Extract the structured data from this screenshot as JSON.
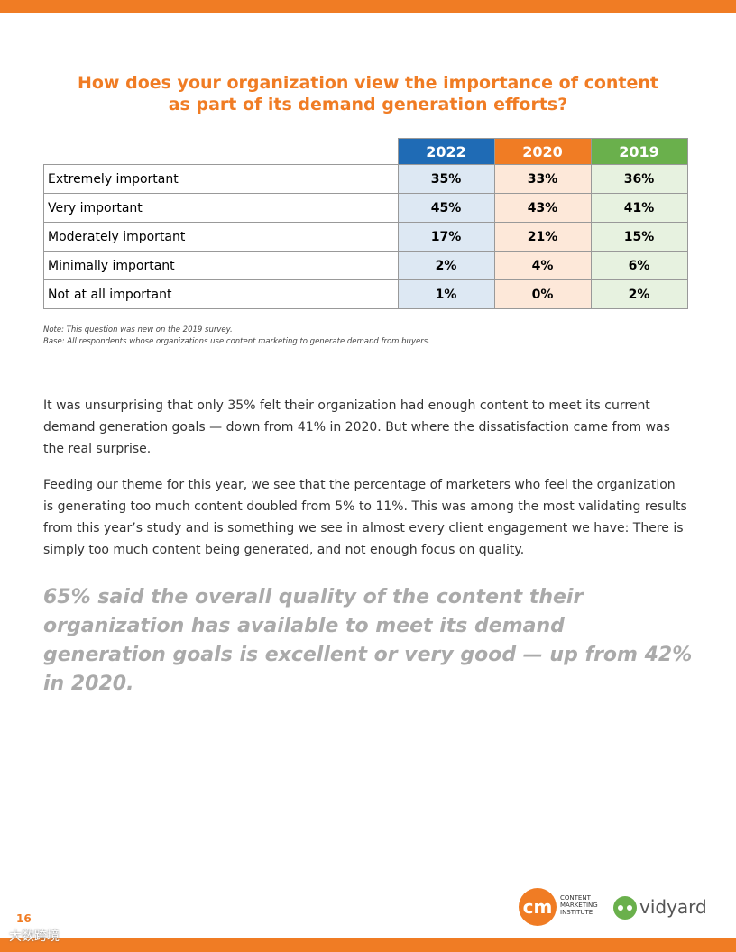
{
  "header": {
    "title_lines": [
      "How does your organization view the importance of content",
      "as part of its demand generation efforts?"
    ]
  },
  "table": {
    "columns": [
      "2022",
      "2020",
      "2019"
    ],
    "rows": [
      [
        "Extremely important",
        "35%",
        "33%",
        "36%"
      ],
      [
        "Very important",
        "45%",
        "43%",
        "41%"
      ],
      [
        "Moderately important",
        "17%",
        "21%",
        "15%"
      ],
      [
        "Minimally important",
        "2%",
        "4%",
        "6%"
      ],
      [
        "Not at all important",
        "1%",
        "0%",
        "2%"
      ]
    ]
  },
  "notes": [
    "Note: This question was new on the 2019 survey.",
    "Base: All respondents whose organizations use content marketing to generate demand from buyers."
  ],
  "body": {
    "paragraphs": [
      "It was unsurprising that only 35% felt their organization had enough content to meet its current demand generation goals — down from 41% in 2020. But where the dissatisfaction came from was the real surprise.",
      "Feeding our theme for this year, we see that the percentage of marketers who feel the organization is generating too much content doubled from 5% to 11%. This was among the most validating results from this year’s study and is something we see in almost every client engagement we have: There is simply too much content being generated, and not enough focus on quality."
    ],
    "pull_quote": "65% said the overall quality of the content their organization has available to meet its demand generation goals is excellent or very good — up from 42% in 2020."
  },
  "footer": {
    "page_number": "16",
    "cmi_mark": "cm",
    "cmi_lines": [
      "CONTENT",
      "MARKETING",
      "INSTITUTE"
    ],
    "vidyard": "vidyard",
    "watermark": "大数跨境"
  }
}
